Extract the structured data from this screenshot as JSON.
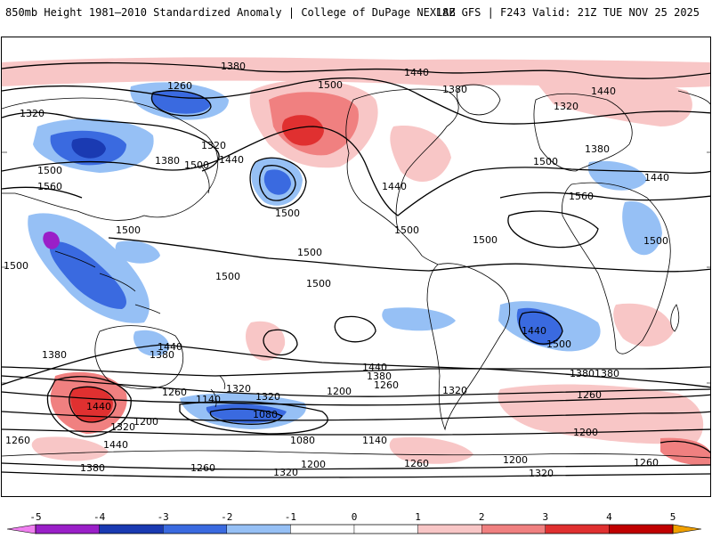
{
  "header": {
    "title": "850mb Height 1981–2010 Standardized Anomaly | College of DuPage NEXLAB",
    "run_info": "18Z GFS | F243 Valid: 21Z TUE NOV 25 2025"
  },
  "colorbar": {
    "ticks": [
      "-5",
      "-4",
      "-3",
      "-2",
      "-1",
      "0",
      "1",
      "2",
      "3",
      "4",
      "5"
    ],
    "colors": [
      "#f07ff0",
      "#9a1fc8",
      "#1a3ab2",
      "#3a6ae0",
      "#96c0f5",
      "#ffffff",
      "#f8c6c6",
      "#f08080",
      "#e03030",
      "#c00000",
      "#f0a000"
    ]
  },
  "contour_labels": [
    "1380",
    "1440",
    "1260",
    "1320",
    "1500",
    "1380",
    "1320",
    "1440",
    "1380",
    "1500",
    "1440",
    "1320",
    "1380",
    "1500",
    "1560",
    "1440",
    "1500",
    "1500",
    "1500",
    "1500",
    "1500",
    "1560",
    "1500",
    "1440",
    "1500",
    "1500",
    "1500",
    "1500",
    "1440",
    "1500",
    "1440",
    "1380",
    "1380",
    "1440",
    "1380",
    "1260",
    "1320",
    "1200",
    "1140",
    "1080",
    "1260",
    "1320",
    "1380",
    "1260",
    "1440",
    "1200",
    "1320",
    "1260",
    "1440",
    "1380",
    "1080",
    "1140",
    "1200",
    "1260",
    "1200",
    "1320",
    "1260",
    "1320",
    "1200",
    "1380",
    "1260",
    "1320"
  ]
}
